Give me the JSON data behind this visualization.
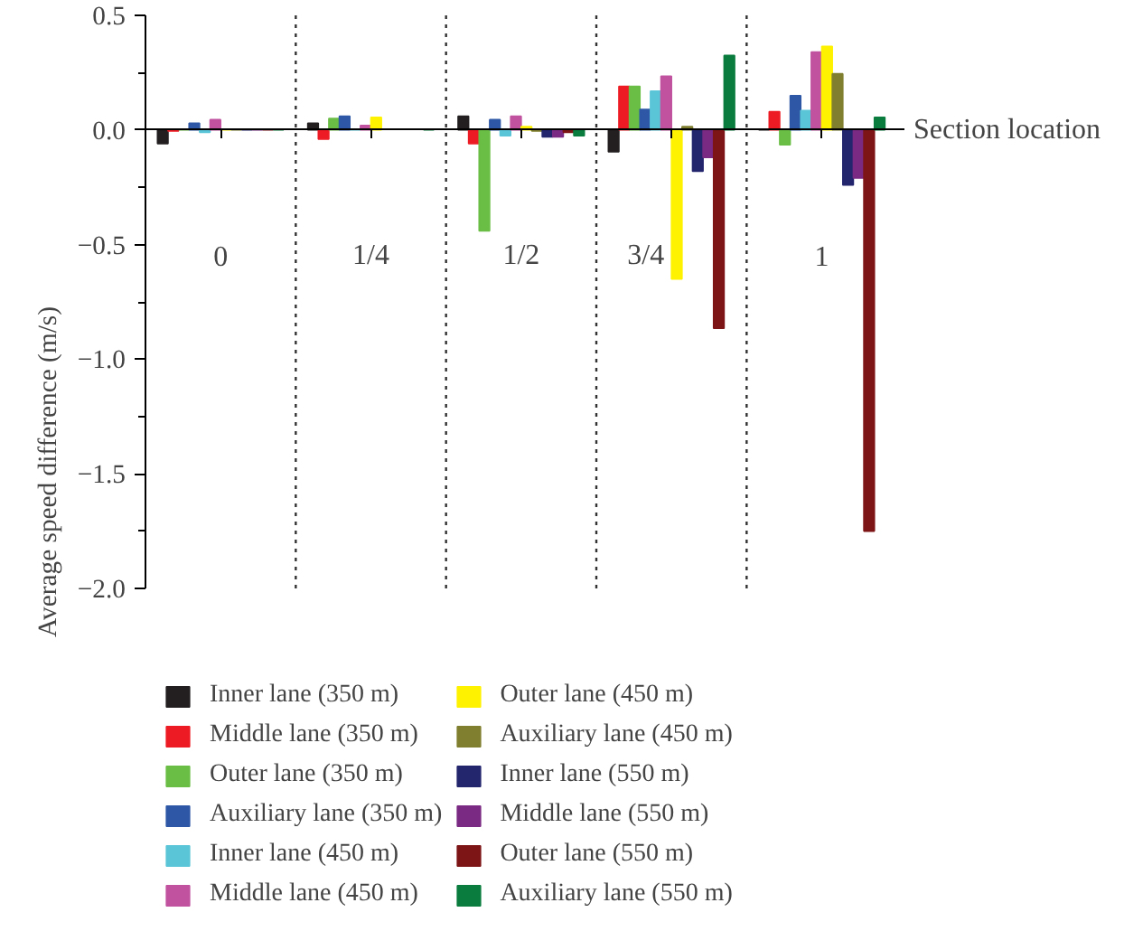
{
  "chart_data": {
    "type": "bar",
    "xlabel": "Section location",
    "ylabel": "Average speed difference (m/s)",
    "categories": [
      "0",
      "1/4",
      "1/2",
      "3/4",
      "1"
    ],
    "ylim": [
      -2.0,
      0.5
    ],
    "yticks": [
      {
        "value": -2.0,
        "label": "−2.0"
      },
      {
        "value": -1.5,
        "label": "−1.5"
      },
      {
        "value": -1.0,
        "label": "−1.0"
      },
      {
        "value": -0.5,
        "label": "−0.5"
      },
      {
        "value": 0.0,
        "label": "0.0"
      },
      {
        "value": 0.5,
        "label": "0.5"
      }
    ],
    "legend": "bottom",
    "grid": false,
    "series": [
      {
        "name": "Inner lane (350 m)",
        "color": "#231f20",
        "values": [
          -0.06,
          0.03,
          0.06,
          -0.095,
          0.0
        ]
      },
      {
        "name": "Middle lane (350 m)",
        "color": "#ed1c24",
        "values": [
          -0.005,
          -0.04,
          -0.06,
          0.19,
          0.08
        ]
      },
      {
        "name": "Outer lane (350 m)",
        "color": "#6abd45",
        "values": [
          0.0,
          0.05,
          -0.44,
          0.19,
          -0.065
        ]
      },
      {
        "name": "Auxiliary lane (350 m)",
        "color": "#2e58a6",
        "values": [
          0.03,
          0.06,
          0.045,
          0.09,
          0.15
        ]
      },
      {
        "name": "Inner lane (450 m)",
        "color": "#5bc5d8",
        "values": [
          -0.01,
          0.0,
          -0.025,
          0.17,
          0.085
        ]
      },
      {
        "name": "Middle lane (450 m)",
        "color": "#c0529f",
        "values": [
          0.045,
          0.02,
          0.06,
          0.235,
          0.34
        ]
      },
      {
        "name": "Outer lane (450 m)",
        "color": "#fff200",
        "values": [
          0.0,
          0.055,
          0.015,
          -0.65,
          0.365
        ]
      },
      {
        "name": "Auxiliary lane (450 m)",
        "color": "#7f7f2f",
        "values": [
          0.0,
          null,
          -0.005,
          0.015,
          0.245
        ]
      },
      {
        "name": "Inner lane (550 m)",
        "color": "#23256d",
        "values": [
          0.0,
          null,
          -0.03,
          -0.18,
          -0.24
        ]
      },
      {
        "name": "Middle lane (550 m)",
        "color": "#7b2a83",
        "values": [
          0.0,
          null,
          -0.03,
          -0.12,
          -0.21
        ]
      },
      {
        "name": "Outer lane (550 m)",
        "color": "#7d1416",
        "values": [
          0.0,
          null,
          -0.01,
          -0.865,
          -1.75
        ]
      },
      {
        "name": "Auxiliary lane (550 m)",
        "color": "#0a7d3e",
        "values": [
          0.0,
          0.0,
          -0.025,
          0.325,
          0.055
        ]
      }
    ]
  }
}
